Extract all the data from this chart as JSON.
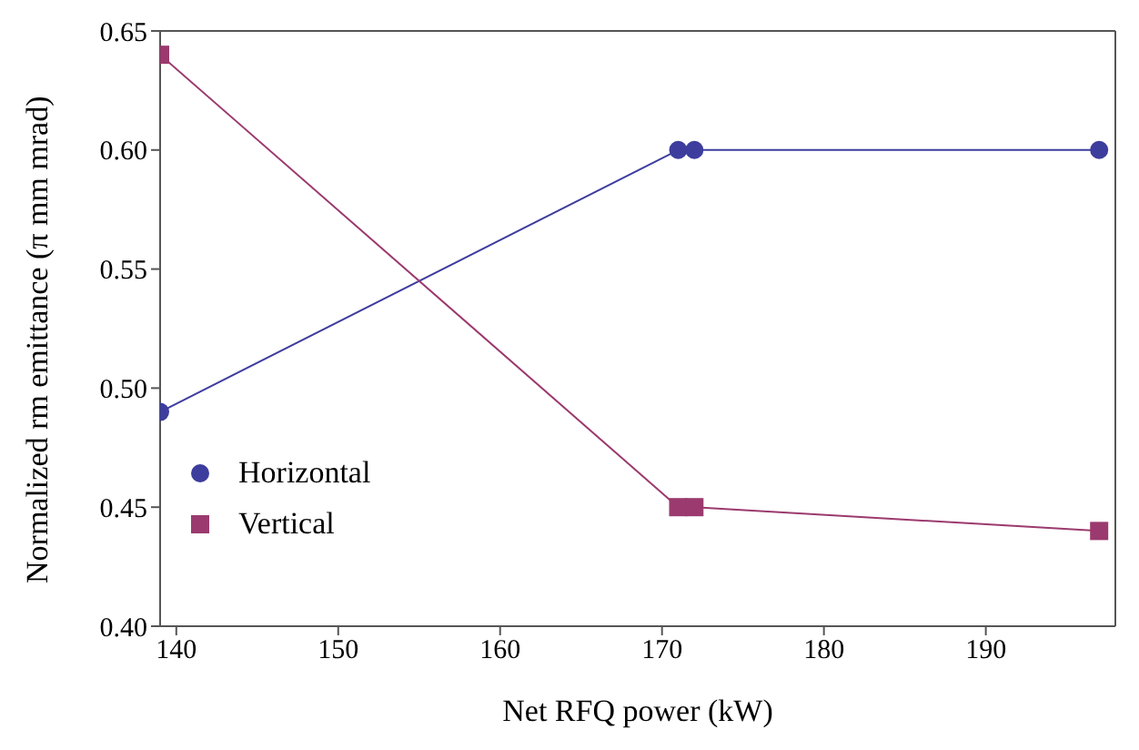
{
  "chart_data": {
    "type": "line",
    "xlabel": "Net RFQ power (kW)",
    "ylabel": "Normalized rm emittance (π mm mrad)",
    "x": [
      139,
      171,
      172,
      197
    ],
    "series": [
      {
        "name": "Horizontal",
        "color": "#3d3d9e",
        "values": [
          0.49,
          0.6,
          0.6,
          0.6
        ],
        "marker": "circle"
      },
      {
        "name": "Vertical",
        "color": "#9b3a6e",
        "values": [
          0.64,
          0.45,
          0.45,
          0.44
        ],
        "marker": "square"
      }
    ],
    "xlim": [
      139,
      198
    ],
    "xticks": [
      140,
      150,
      160,
      170,
      180,
      190
    ],
    "ylim": [
      0.4,
      0.65
    ],
    "yticks": [
      {
        "value": 0.4,
        "label": "0.40"
      },
      0.45,
      {
        "value": 0.5,
        "label": "0.50"
      },
      0.55,
      {
        "value": 0.6,
        "label": "0.60"
      },
      0.65
    ],
    "grid": false,
    "legend": "bottom left",
    "line_style": "solid"
  }
}
